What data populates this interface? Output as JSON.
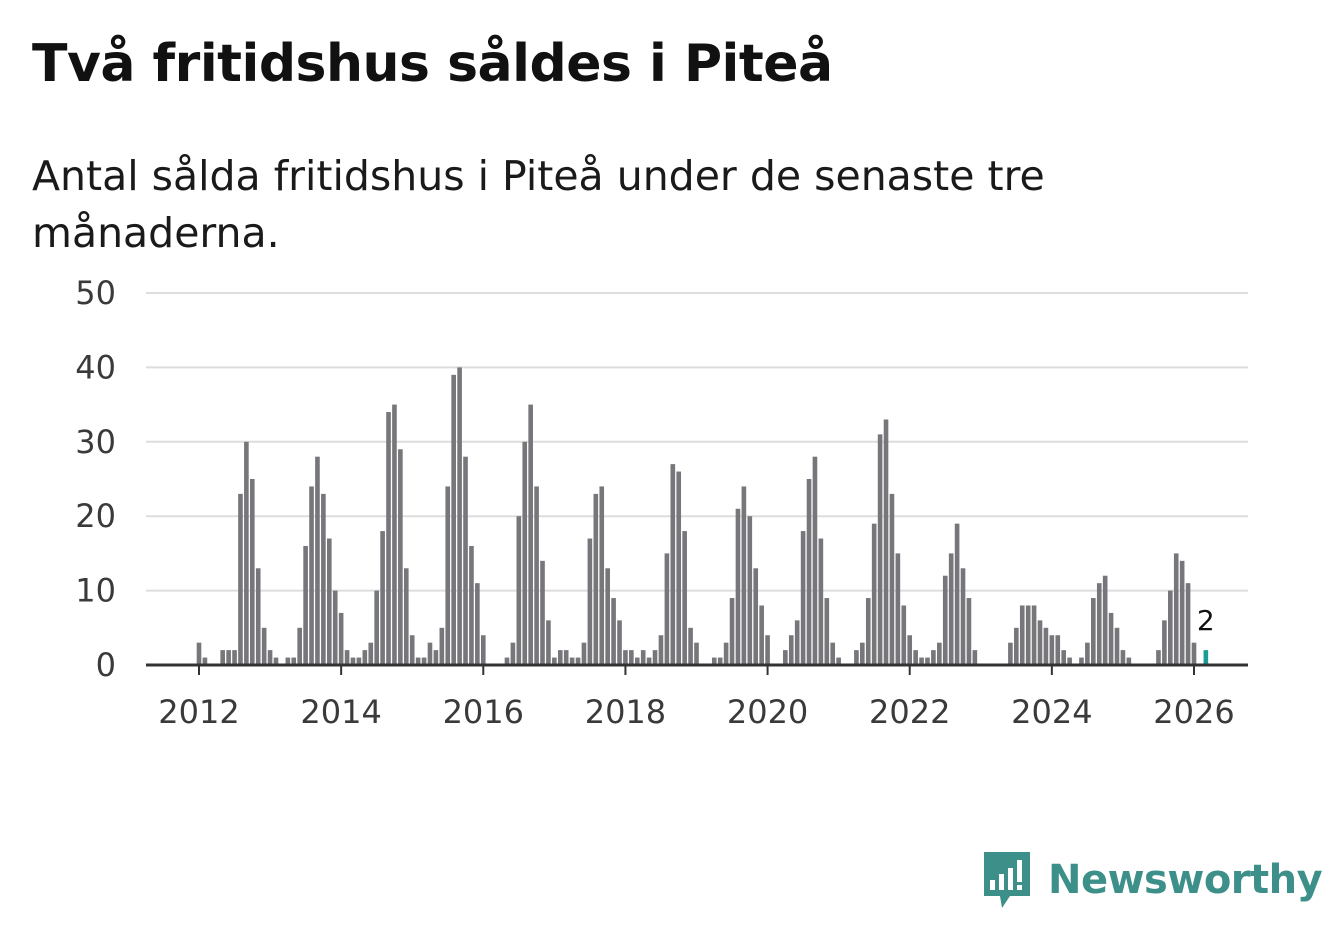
{
  "header": {
    "title": "Två fritidshus såldes i Piteå",
    "subtitle": "Antal sålda fritidshus i Piteå under de senaste tre månaderna."
  },
  "brand": {
    "name": "Newsworthy",
    "icon": "newsworthy-logo-icon",
    "color": "#3d8f8a"
  },
  "colors": {
    "bar": "#77767b",
    "highlight": "#1a9c96",
    "grid": "#dddddd",
    "axis": "#333333"
  },
  "chart_data": {
    "type": "bar",
    "title": "Två fritidshus såldes i Piteå",
    "xlabel": "",
    "ylabel": "",
    "ylim": [
      0,
      50
    ],
    "yticks": [
      0,
      10,
      20,
      30,
      40,
      50
    ],
    "xticks": [
      2012,
      2014,
      2016,
      2018,
      2020,
      2022,
      2024,
      2026
    ],
    "start": "2011-04",
    "interval": "month",
    "grid": true,
    "highlight_label": "2",
    "series": [
      {
        "name": "Sålda fritidshus",
        "values": [
          0,
          0,
          0,
          0,
          0,
          0,
          0,
          0,
          0,
          3,
          1,
          0,
          0,
          2,
          2,
          2,
          23,
          30,
          25,
          13,
          5,
          2,
          1,
          0,
          1,
          1,
          5,
          16,
          24,
          28,
          23,
          17,
          10,
          7,
          2,
          1,
          1,
          2,
          3,
          10,
          18,
          34,
          35,
          29,
          13,
          4,
          1,
          1,
          3,
          2,
          5,
          24,
          39,
          40,
          28,
          16,
          11,
          4,
          0,
          0,
          0,
          1,
          3,
          20,
          30,
          35,
          24,
          14,
          6,
          1,
          2,
          2,
          1,
          1,
          3,
          17,
          23,
          24,
          13,
          9,
          6,
          2,
          2,
          1,
          2,
          1,
          2,
          4,
          15,
          27,
          26,
          18,
          5,
          3,
          0,
          0,
          1,
          1,
          3,
          9,
          21,
          24,
          20,
          13,
          8,
          4,
          0,
          0,
          2,
          4,
          6,
          18,
          25,
          28,
          17,
          9,
          3,
          1,
          0,
          0,
          2,
          3,
          9,
          19,
          31,
          33,
          23,
          15,
          8,
          4,
          2,
          1,
          1,
          2,
          3,
          12,
          15,
          19,
          13,
          9,
          2,
          0,
          0,
          0,
          0,
          0,
          3,
          5,
          8,
          8,
          8,
          6,
          5,
          4,
          4,
          2,
          1,
          0,
          1,
          3,
          9,
          11,
          12,
          7,
          5,
          2,
          1,
          0,
          0,
          0,
          0,
          2,
          6,
          10,
          15,
          14,
          11,
          3,
          0,
          2
        ]
      }
    ]
  }
}
